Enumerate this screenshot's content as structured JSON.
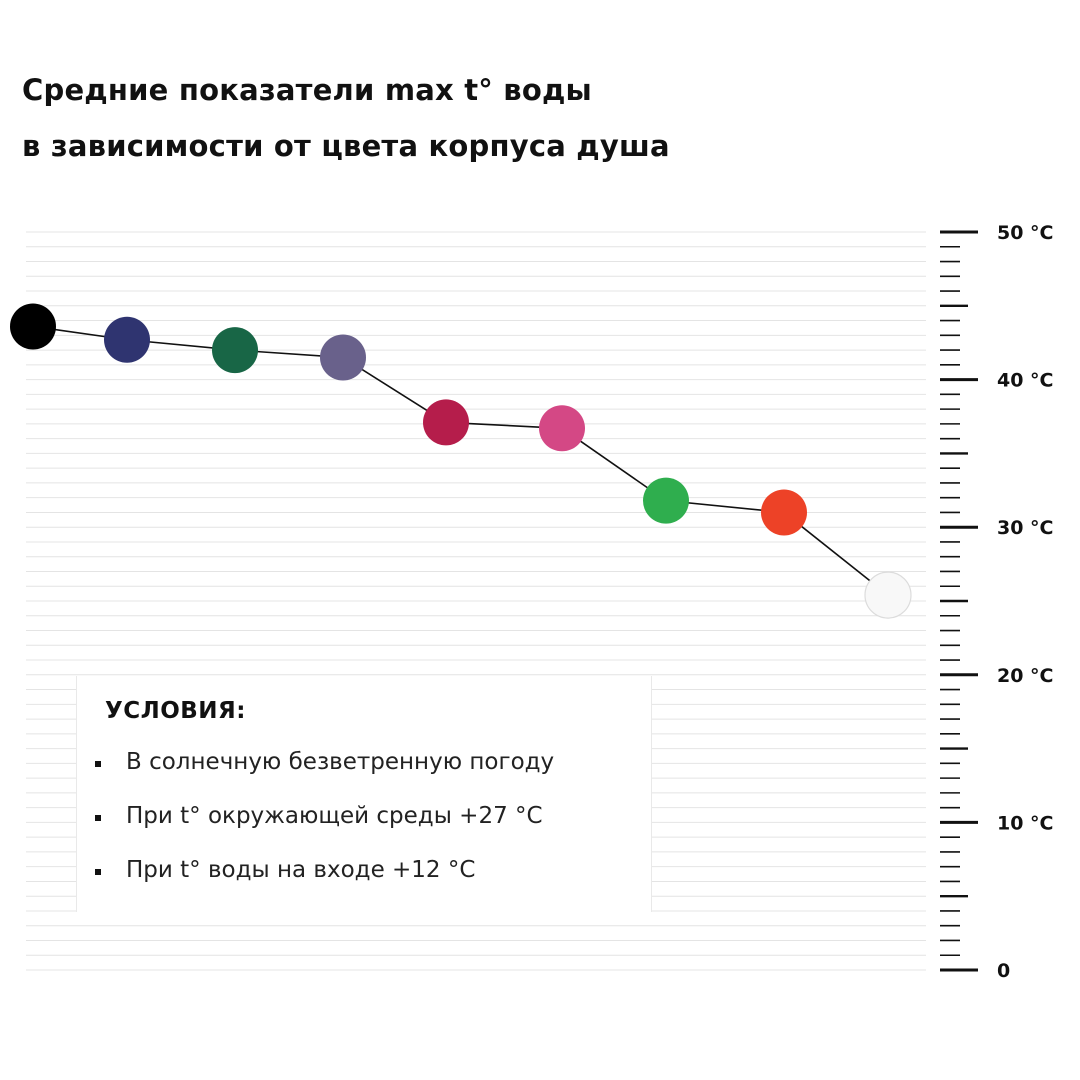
{
  "title": {
    "line1": "Средние показатели max t° воды",
    "line2": "в зависимости от цвета корпуса душа"
  },
  "conditions": {
    "heading": "УСЛОВИЯ:",
    "items": [
      "В солнечную безветренную погоду",
      "При t° окружающей среды +27 °С",
      "При t° воды на входе +12 °С"
    ]
  },
  "chart_data": {
    "type": "line",
    "title": "Средние показатели max t° воды в зависимости от цвета корпуса душа",
    "xlabel": "",
    "ylabel": "",
    "ylim": [
      0,
      50
    ],
    "y_ticks": [
      "0",
      "10 °С",
      "20 °С",
      "30 °С",
      "40 °С",
      "50 °С"
    ],
    "y_tick_values": [
      0,
      10,
      20,
      30,
      40,
      50
    ],
    "axis_position": "right",
    "grid": true,
    "points": [
      {
        "color": "#000000",
        "value": 43.6
      },
      {
        "color": "#2f3470",
        "value": 42.7
      },
      {
        "color": "#186646",
        "value": 42.0
      },
      {
        "color": "#69618b",
        "value": 41.5
      },
      {
        "color": "#b51d4b",
        "value": 37.1
      },
      {
        "color": "#d44885",
        "value": 36.7
      },
      {
        "color": "#2fae4e",
        "value": 31.8
      },
      {
        "color": "#ed4227",
        "value": 31.0
      },
      {
        "color": "#f8f8f8",
        "value": 25.4
      }
    ]
  }
}
